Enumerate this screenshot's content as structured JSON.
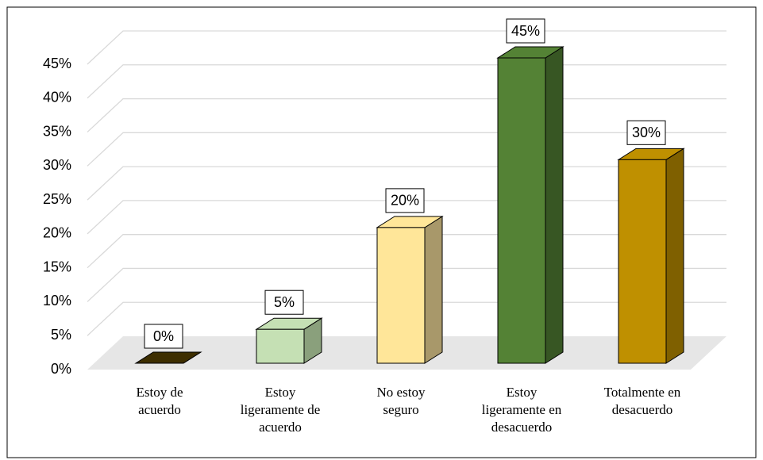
{
  "chart_data": {
    "type": "bar3d",
    "categories": [
      "Estoy de acuerdo",
      "Estoy ligeramente de acuerdo",
      "No estoy seguro",
      "Estoy ligeramente en desacuerdo",
      "Totalmente en desacuerdo"
    ],
    "values": [
      0,
      5,
      20,
      45,
      30
    ],
    "value_labels": [
      "0%",
      "5%",
      "20%",
      "45%",
      "30%"
    ],
    "colors": [
      "#6b5000",
      "#c5e0b4",
      "#ffe699",
      "#548235",
      "#bf9000"
    ],
    "side_colors": [
      "#3d2e00",
      "#8aa07c",
      "#a8986a",
      "#375623",
      "#7f6000"
    ],
    "ylim": [
      0,
      45
    ],
    "yticks": [
      {
        "value": 0,
        "label": "0%"
      },
      {
        "value": 5,
        "label": "5%"
      },
      {
        "value": 10,
        "label": "10%"
      },
      {
        "value": 15,
        "label": "15%"
      },
      {
        "value": 20,
        "label": "20%"
      },
      {
        "value": 25,
        "label": "25%"
      },
      {
        "value": 30,
        "label": "30%"
      },
      {
        "value": 35,
        "label": "35%"
      },
      {
        "value": 40,
        "label": "40%"
      },
      {
        "value": 45,
        "label": "45%"
      }
    ],
    "grid": true
  }
}
